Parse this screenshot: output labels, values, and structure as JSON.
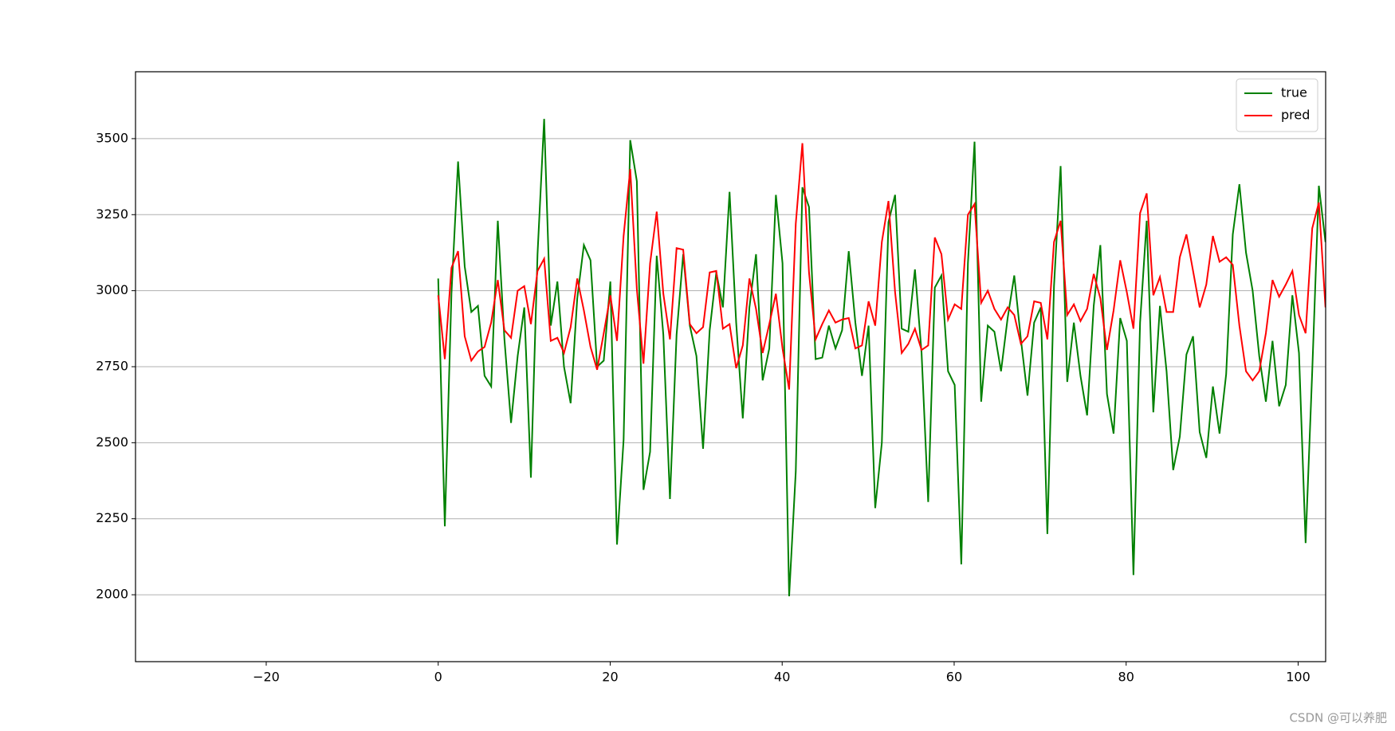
{
  "chart_data": {
    "type": "line",
    "x": [
      0,
      0.77,
      1.54,
      2.31,
      3.08,
      3.85,
      4.62,
      5.39,
      6.16,
      6.93,
      7.7,
      8.47,
      9.24,
      10.01,
      10.78,
      11.55,
      12.32,
      13.09,
      13.86,
      14.63,
      15.4,
      16.17,
      16.94,
      17.71,
      18.48,
      19.25,
      20.02,
      20.79,
      21.56,
      22.33,
      23.1,
      23.87,
      24.64,
      25.41,
      26.18,
      26.95,
      27.72,
      28.49,
      29.26,
      30.03,
      30.8,
      31.57,
      32.34,
      33.11,
      33.88,
      34.65,
      35.42,
      36.19,
      36.96,
      37.73,
      38.5,
      39.27,
      40.04,
      40.81,
      41.58,
      42.35,
      43.12,
      43.89,
      44.66,
      45.43,
      46.2,
      46.97,
      47.74,
      48.51,
      49.28,
      50.05,
      50.82,
      51.59,
      52.36,
      53.13,
      53.9,
      54.67,
      55.44,
      56.21,
      56.98,
      57.75,
      58.52,
      59.29,
      60.06,
      60.83,
      61.6,
      62.37,
      63.14,
      63.91,
      64.68,
      65.45,
      66.22,
      66.99,
      67.76,
      68.53,
      69.3,
      70.07,
      70.84,
      71.61,
      72.38,
      73.15,
      73.92,
      74.69,
      75.46,
      76.23,
      77,
      77.77,
      78.54,
      79.31,
      80.08,
      80.85,
      81.62,
      82.39,
      83.16,
      83.93,
      84.7,
      85.47,
      86.24,
      87.01,
      87.78,
      88.55,
      89.32,
      90.09,
      90.86,
      91.63,
      92.4,
      93.17,
      93.94,
      94.71,
      95.48,
      96.25,
      97.02,
      97.79,
      98.56,
      99.33,
      100.1,
      100.87,
      101.64,
      102.41,
      103.18
    ],
    "series": [
      {
        "name": "true",
        "color": "#008000",
        "values": [
          3040,
          2225,
          2990,
          3425,
          3080,
          2930,
          2950,
          2720,
          2685,
          3230,
          2840,
          2565,
          2785,
          2945,
          2385,
          3120,
          3565,
          2885,
          3030,
          2750,
          2630,
          2975,
          3150,
          3100,
          2750,
          2770,
          3030,
          2165,
          2510,
          3495,
          3360,
          2345,
          2470,
          3115,
          2855,
          2315,
          2855,
          3120,
          2885,
          2785,
          2480,
          2870,
          3060,
          2945,
          3325,
          2895,
          2580,
          2945,
          3120,
          2705,
          2810,
          3315,
          3090,
          1995,
          2405,
          3340,
          3275,
          2775,
          2780,
          2885,
          2810,
          2870,
          3130,
          2895,
          2720,
          2885,
          2285,
          2500,
          3225,
          3315,
          2875,
          2865,
          3070,
          2795,
          2305,
          3010,
          3050,
          2735,
          2690,
          2100,
          3090,
          3490,
          2635,
          2885,
          2865,
          2735,
          2910,
          3050,
          2840,
          2655,
          2895,
          2945,
          2200,
          3015,
          3410,
          2700,
          2895,
          2720,
          2590,
          2950,
          3150,
          2660,
          2530,
          2910,
          2835,
          2065,
          2895,
          3230,
          2600,
          2950,
          2735,
          2410,
          2520,
          2790,
          2850,
          2535,
          2450,
          2685,
          2530,
          2725,
          3185,
          3350,
          3125,
          3000,
          2785,
          2635,
          2835,
          2620,
          2690,
          2985,
          2795,
          2170,
          2735,
          3345,
          3160
        ]
      },
      {
        "name": "pred",
        "color": "#ff0000",
        "values": [
          2985,
          2775,
          3075,
          3130,
          2850,
          2770,
          2800,
          2815,
          2895,
          3035,
          2870,
          2845,
          3000,
          3015,
          2890,
          3065,
          3105,
          2835,
          2845,
          2795,
          2880,
          3040,
          2935,
          2815,
          2740,
          2860,
          2985,
          2835,
          3180,
          3400,
          3005,
          2760,
          3090,
          3260,
          2990,
          2840,
          3140,
          3135,
          2890,
          2860,
          2880,
          3060,
          3065,
          2875,
          2890,
          2745,
          2820,
          3040,
          2940,
          2795,
          2890,
          2990,
          2810,
          2675,
          3220,
          3485,
          3060,
          2840,
          2890,
          2935,
          2895,
          2905,
          2910,
          2810,
          2820,
          2965,
          2885,
          3160,
          3295,
          2995,
          2795,
          2825,
          2875,
          2805,
          2820,
          3175,
          3120,
          2905,
          2955,
          2940,
          3250,
          3285,
          2960,
          3000,
          2940,
          2905,
          2945,
          2920,
          2825,
          2850,
          2965,
          2960,
          2840,
          3160,
          3230,
          2920,
          2955,
          2900,
          2940,
          3055,
          2975,
          2805,
          2935,
          3100,
          2995,
          2875,
          3255,
          3320,
          2985,
          3045,
          2930,
          2930,
          3110,
          3185,
          3065,
          2945,
          3020,
          3180,
          3095,
          3110,
          3085,
          2885,
          2735,
          2705,
          2735,
          2860,
          3035,
          2980,
          3020,
          3065,
          2920,
          2860,
          3205,
          3290,
          2945
        ]
      }
    ],
    "xlim": [
      -35.2,
      103.2
    ],
    "ylim": [
      1780,
      3720
    ],
    "xticks": [
      {
        "value": -20,
        "label": "−20"
      },
      0,
      20,
      40,
      60,
      80,
      100
    ],
    "yticks": [
      2000,
      2250,
      2500,
      2750,
      3000,
      3250,
      3500
    ],
    "grid": "y",
    "legend": "upper right",
    "watermark": "CSDN @可以养肥"
  }
}
